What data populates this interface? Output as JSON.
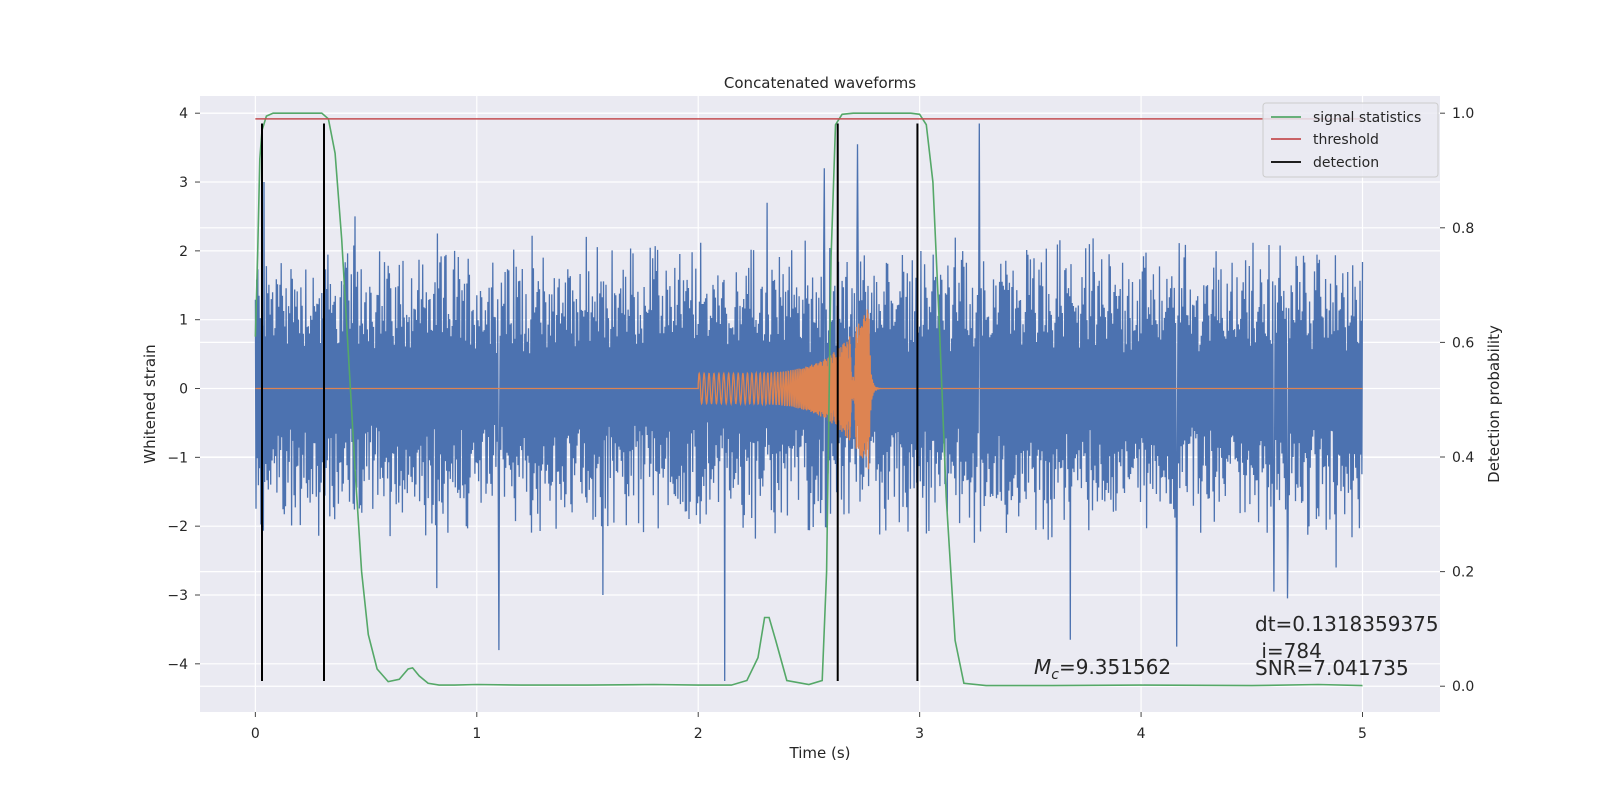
{
  "chart_data": {
    "type": "line",
    "title": "Concatenated waveforms",
    "xlabel": "Time (s)",
    "ylabel": "Whitened strain",
    "y2label": "Detection probability",
    "xlim": [
      -0.25,
      5.35
    ],
    "ylim": [
      -4.7,
      4.25
    ],
    "y2lim": [
      -0.045,
      1.03
    ],
    "x_ticks": [
      0,
      1,
      2,
      3,
      4,
      5
    ],
    "y_ticks": [
      -4,
      -3,
      -2,
      -1,
      0,
      1,
      2,
      3,
      4
    ],
    "y2_ticks": [
      0.0,
      0.2,
      0.4,
      0.6,
      0.8,
      1.0
    ],
    "grid": true,
    "legend_position": "top-right",
    "colors": {
      "strain": "#4c72b0",
      "template": "#dd8452",
      "signal_statistics": "#55a868",
      "threshold": "#c44e52",
      "detection": "#000000",
      "plot_background": "#eaeaf2",
      "grid": "#ffffff"
    },
    "series": [
      {
        "name": "signal statistics",
        "axis": "right",
        "x": [
          0.0,
          0.01,
          0.02,
          0.03,
          0.05,
          0.08,
          0.12,
          0.2,
          0.3,
          0.33,
          0.36,
          0.39,
          0.42,
          0.45,
          0.48,
          0.51,
          0.55,
          0.6,
          0.65,
          0.69,
          0.71,
          0.74,
          0.78,
          0.83,
          0.9,
          1.0,
          1.2,
          1.5,
          1.8,
          2.0,
          2.15,
          2.22,
          2.27,
          2.3,
          2.32,
          2.35,
          2.4,
          2.5,
          2.56,
          2.58,
          2.6,
          2.62,
          2.65,
          2.7,
          2.8,
          2.9,
          2.96,
          3.0,
          3.03,
          3.06,
          3.09,
          3.12,
          3.16,
          3.2,
          3.3,
          3.6,
          4.0,
          4.5,
          4.8,
          5.0
        ],
        "y": [
          0.61,
          0.75,
          0.92,
          0.97,
          0.995,
          1.0,
          1.0,
          1.0,
          1.0,
          0.99,
          0.93,
          0.78,
          0.58,
          0.38,
          0.2,
          0.09,
          0.03,
          0.008,
          0.012,
          0.03,
          0.032,
          0.018,
          0.005,
          0.002,
          0.002,
          0.003,
          0.002,
          0.002,
          0.003,
          0.002,
          0.002,
          0.01,
          0.05,
          0.12,
          0.12,
          0.08,
          0.01,
          0.003,
          0.01,
          0.2,
          0.75,
          0.98,
          0.998,
          1.0,
          1.0,
          1.0,
          1.0,
          0.998,
          0.98,
          0.88,
          0.62,
          0.33,
          0.08,
          0.005,
          0.001,
          0.001,
          0.002,
          0.001,
          0.003,
          0.001
        ]
      },
      {
        "name": "threshold",
        "axis": "right",
        "x": [
          0,
          5
        ],
        "y": [
          0.99,
          0.99
        ]
      },
      {
        "name": "detection",
        "axis": "left",
        "x": [
          0.03,
          0.31,
          2.63,
          2.99
        ],
        "ymin": -4.25,
        "ymax": 3.85
      }
    ],
    "strain_series": {
      "axis": "left",
      "x_range": [
        0,
        5
      ],
      "typical_amplitude": 2.3,
      "spikes": [
        [
          0.04,
          3.0
        ],
        [
          0.45,
          2.5
        ],
        [
          0.82,
          -2.9
        ],
        [
          1.1,
          -3.8
        ],
        [
          1.57,
          -3.0
        ],
        [
          2.12,
          -4.25
        ],
        [
          2.31,
          2.7
        ],
        [
          2.57,
          3.2
        ],
        [
          2.72,
          3.55
        ],
        [
          3.27,
          3.85
        ],
        [
          3.68,
          -3.65
        ],
        [
          4.16,
          -3.75
        ],
        [
          4.6,
          -2.95
        ],
        [
          4.66,
          -3.05
        ],
        [
          4.88,
          -2.6
        ]
      ]
    },
    "template_series": {
      "axis": "left",
      "x_range": [
        2.0,
        2.77
      ],
      "start_amplitude": 0.22,
      "peak_amplitude": 1.2,
      "peak_x": 2.77
    },
    "annotations": {
      "mc": "=9.351562",
      "mc_symbol_main": "M",
      "mc_symbol_sub": "c",
      "dt": "dt=0.1318359375",
      "i": " i=784",
      "snr": "SNR=7.041735"
    },
    "legend": [
      "signal statistics",
      "threshold",
      "detection"
    ]
  }
}
